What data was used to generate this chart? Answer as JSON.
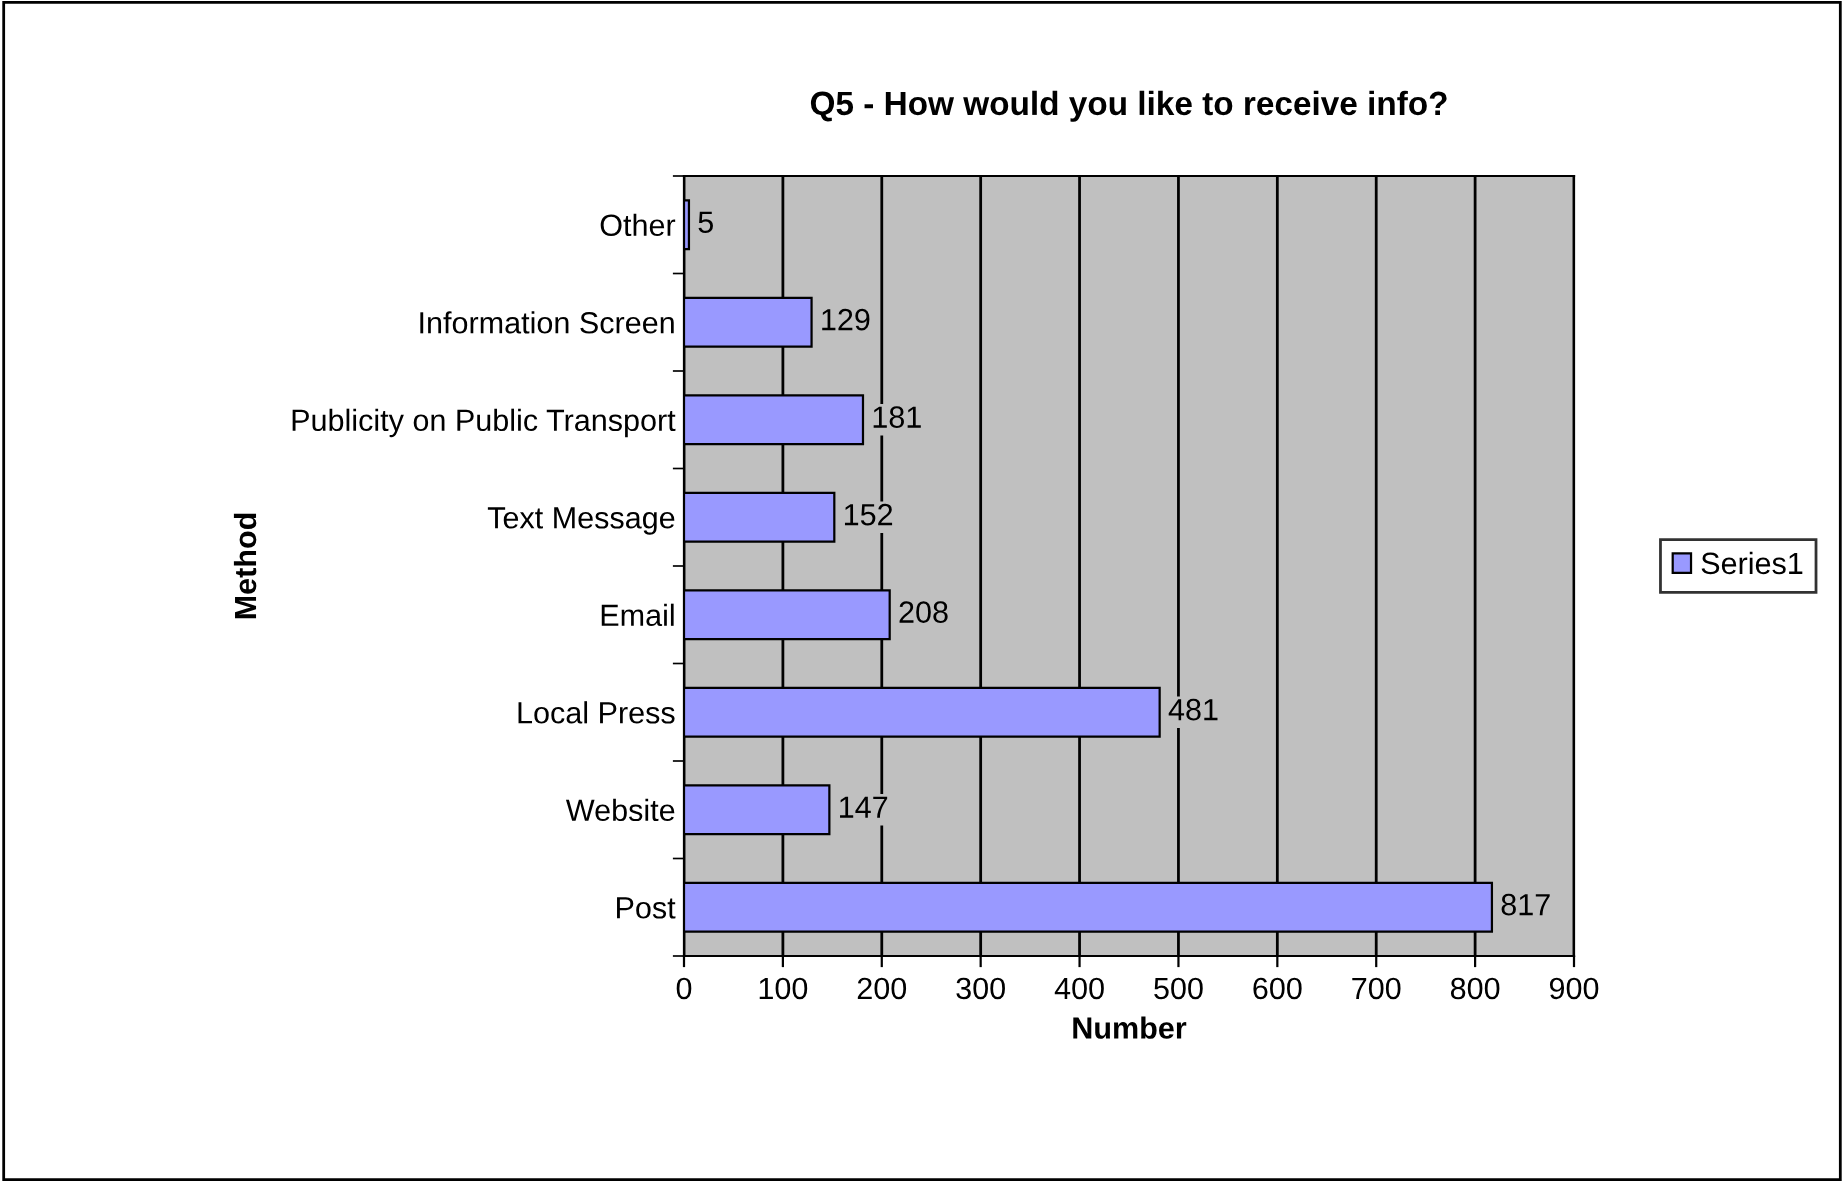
{
  "chart_data": {
    "type": "bar",
    "orientation": "horizontal",
    "title": "Q5 - How would you like to receive info?",
    "xlabel": "Number",
    "ylabel": "Method",
    "categories": [
      "Other",
      "Information Screen",
      "Publicity on Public Transport",
      "Text Message",
      "Email",
      "Local Press",
      "Website",
      "Post"
    ],
    "series": [
      {
        "name": "Series1",
        "color": "#9999ff",
        "values": [
          5,
          129,
          181,
          152,
          208,
          481,
          147,
          817
        ]
      }
    ],
    "xlim": [
      0,
      900
    ],
    "xticks": [
      0,
      100,
      200,
      300,
      400,
      500,
      600,
      700,
      800,
      900
    ],
    "grid": "x",
    "legend": "right",
    "data_labels": true
  }
}
